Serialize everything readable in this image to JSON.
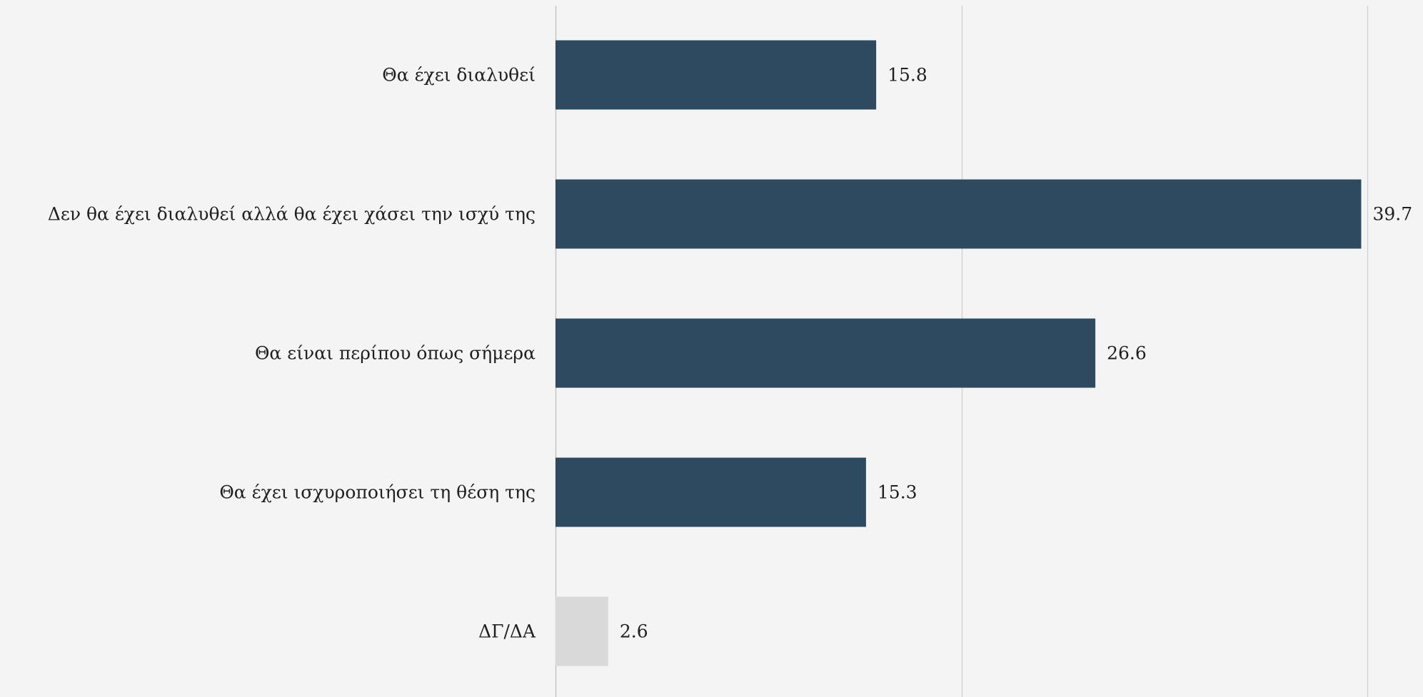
{
  "chart_data": {
    "type": "bar",
    "orientation": "horizontal",
    "categories": [
      "Θα έχει διαλυθεί",
      "Δεν θα έχει διαλυθεί αλλά θα έχει χάσει την ισχύ της",
      "Θα είναι περίπου όπως σήμερα",
      "Θα έχει ισχυροποιήσει τη θέση της",
      "ΔΓ/ΔΑ"
    ],
    "values": [
      15.8,
      39.7,
      26.6,
      15.3,
      2.6
    ],
    "value_labels": [
      "15.8",
      "39.7",
      "26.6",
      "15.3",
      "2.6"
    ],
    "bar_colors": [
      "#2d4a60",
      "#2d4a60",
      "#2d4a60",
      "#2d4a60",
      "#d9d9d9"
    ],
    "xlim": [
      0,
      40
    ],
    "gridlines": [
      0,
      20,
      40
    ],
    "grid": true,
    "title": "",
    "xlabel": "",
    "ylabel": ""
  }
}
